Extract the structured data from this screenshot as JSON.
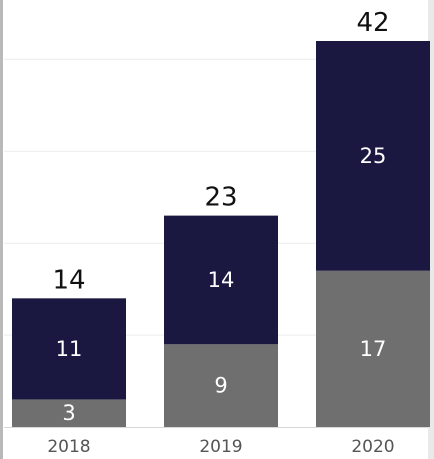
{
  "chart_data": {
    "type": "bar",
    "stacked": true,
    "categories": [
      "2018",
      "2019",
      "2020"
    ],
    "series": [
      {
        "values": [
          3,
          9,
          17
        ],
        "color": "#6f6f6f"
      },
      {
        "values": [
          11,
          14,
          25
        ],
        "color": "#1a1840"
      }
    ],
    "totals": [
      14,
      23,
      42
    ],
    "ylim": [
      0,
      42
    ],
    "grid": true,
    "legend": false,
    "title": "",
    "xlabel": "",
    "ylabel": ""
  }
}
